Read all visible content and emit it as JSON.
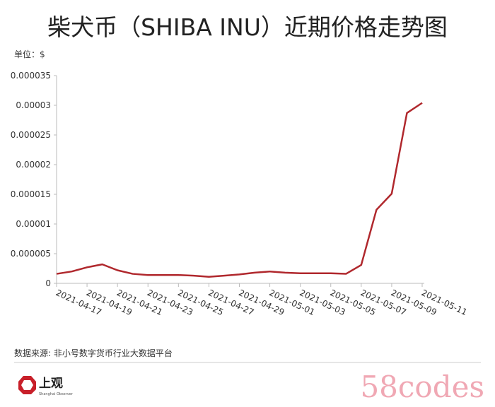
{
  "chart_data": {
    "type": "line",
    "title": "柴犬币（SHIBA INU）近期价格走势图",
    "unit": "单位：$",
    "categories": [
      "2021-04-17",
      null,
      "2021-04-19",
      null,
      "2021-04-21",
      null,
      "2021-04-23",
      null,
      "2021-04-25",
      null,
      "2021-04-27",
      null,
      "2021-04-29",
      null,
      "2021-05-01",
      null,
      "2021-05-03",
      null,
      "2021-05-05",
      null,
      "2021-05-07",
      null,
      "2021-05-09",
      null,
      "2021-05-11"
    ],
    "series": [
      {
        "color": "#b0282d",
        "values": [
          1.6e-06,
          2e-06,
          2.7e-06,
          3.2e-06,
          2.2e-06,
          1.6e-06,
          1.4e-06,
          1.4e-06,
          1.4e-06,
          1.3e-06,
          1.1e-06,
          1.3e-06,
          1.5e-06,
          1.8e-06,
          2e-06,
          1.8e-06,
          1.7e-06,
          1.7e-06,
          1.7e-06,
          1.6e-06,
          3.1e-06,
          1.24e-05,
          1.51e-05,
          2.87e-05,
          3.04e-05
        ]
      }
    ],
    "ylim": [
      0,
      3.5e-05
    ],
    "yticks": [
      0,
      5e-06,
      1e-05,
      1.5e-05,
      2e-05,
      2.5e-05,
      3e-05,
      3.5e-05
    ],
    "grid": false,
    "source": "数据来源: 非小号数字货币行业大数据平台",
    "logo": "上观",
    "logo_subtitle": "Shanghai Observer",
    "watermark": "58codes"
  }
}
